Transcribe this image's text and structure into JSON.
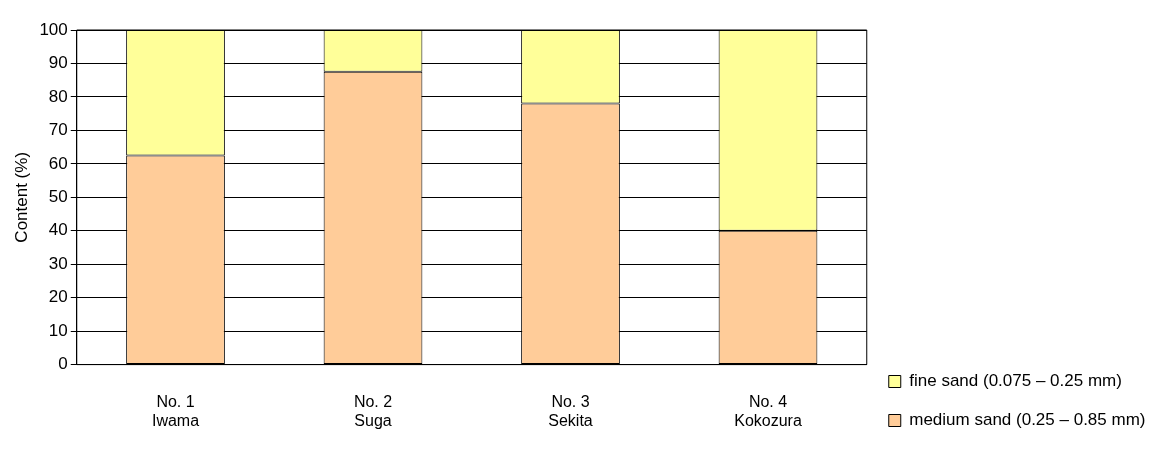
{
  "chart_data": {
    "type": "bar",
    "stacked": true,
    "ylabel": "Content (%)",
    "categories": [
      "No. 1\nIwama",
      "No. 2\nSuga",
      "No. 3\nSekita",
      "No. 4\nKokozura"
    ],
    "series": [
      {
        "name": "medium sand (0.25 – 0.85 mm)",
        "color": "#ffcc99",
        "values": [
          62.5,
          87.5,
          78,
          40
        ]
      },
      {
        "name": "fine sand (0.075 – 0.25 mm)",
        "color": "#ffff99",
        "values": [
          37.5,
          12.5,
          22,
          60
        ]
      }
    ],
    "ylim": [
      0,
      100
    ],
    "yticks": [
      0,
      10,
      20,
      30,
      40,
      50,
      60,
      70,
      80,
      90,
      100
    ],
    "grid": "y",
    "legend": "right"
  }
}
